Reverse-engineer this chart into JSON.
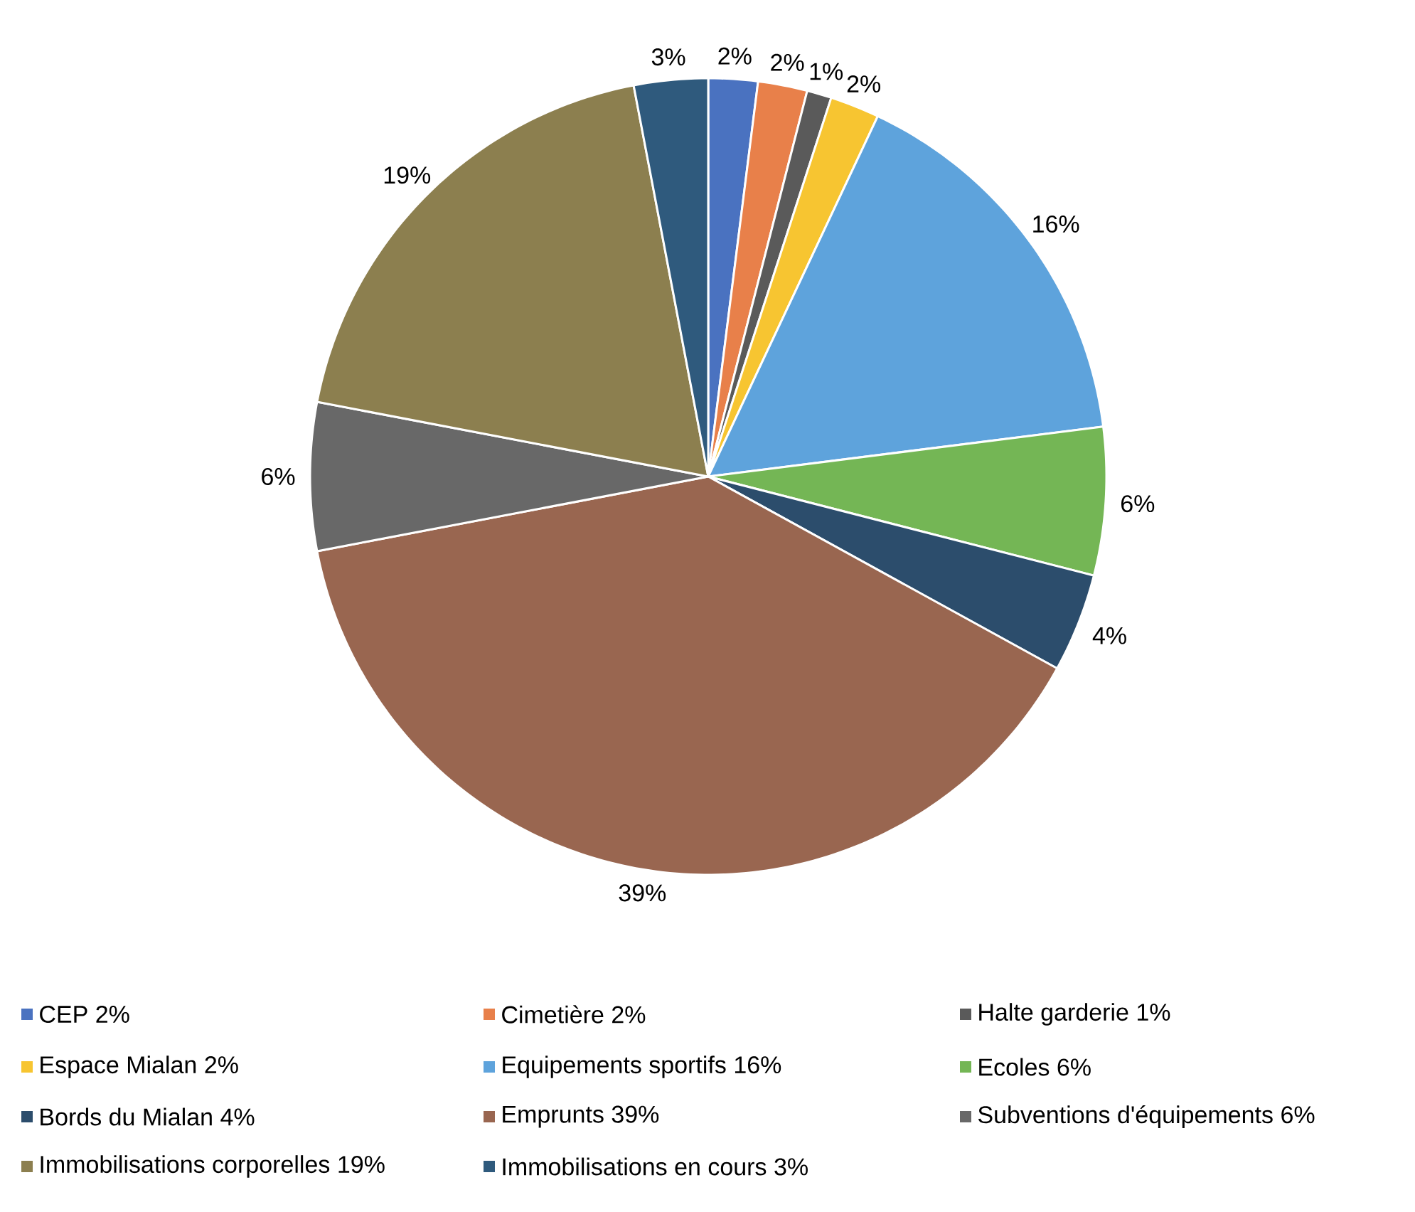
{
  "chart_data": {
    "type": "pie",
    "categories": [
      "CEP",
      "Cimetière",
      "Halte garderie",
      "Espace Mialan",
      "Equipements sportifs",
      "Ecoles",
      "Bords du Mialan",
      "Emprunts",
      "Subventions d'équipements",
      "Immobilisations corporelles",
      "Immobilisations en cours"
    ],
    "values": [
      2,
      2,
      1,
      2,
      16,
      6,
      4,
      39,
      6,
      19,
      3
    ],
    "value_labels": [
      "2%",
      "2%",
      "1%",
      "2%",
      "16%",
      "6%",
      "4%",
      "39%",
      "6%",
      "19%",
      "3%"
    ],
    "colors": [
      "#4a72c0",
      "#e8804a",
      "#5a5a5a",
      "#f7c531",
      "#5ea3dc",
      "#74b655",
      "#2c4d6c",
      "#996650",
      "#686868",
      "#8c7f4f",
      "#2f5a7d"
    ],
    "legend": "bottom"
  }
}
